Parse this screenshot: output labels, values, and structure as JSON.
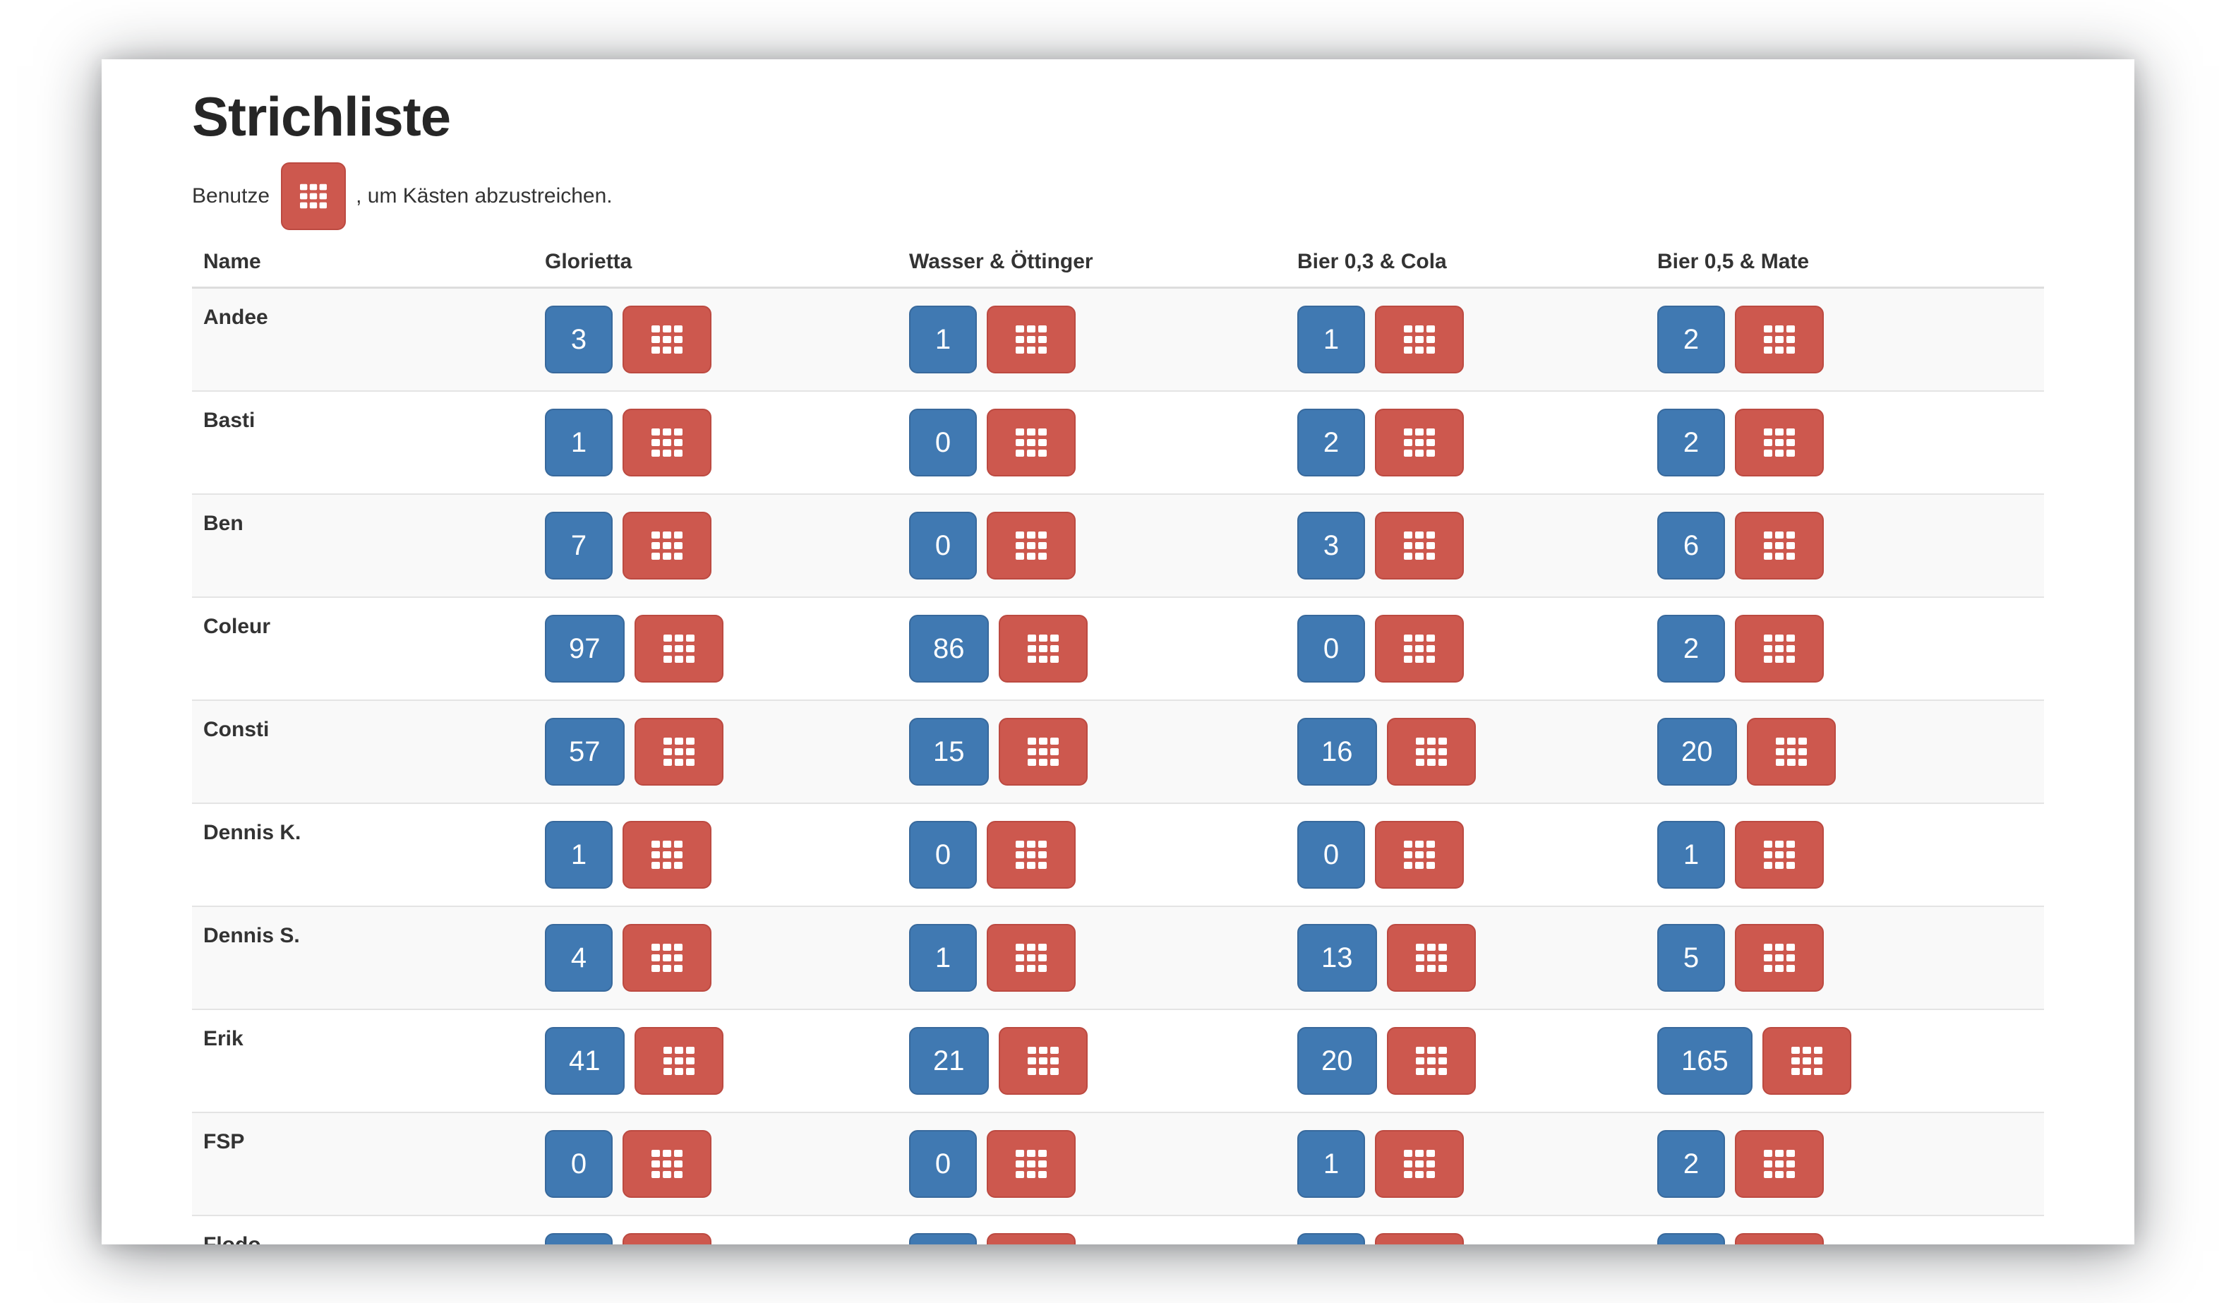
{
  "page": {
    "title": "Strichliste",
    "instruction_prefix": "Benutze",
    "instruction_suffix": ", um Kästen abzustreichen."
  },
  "colors": {
    "count_button": "#4079b2",
    "strike_button": "#cd584e",
    "row_stripe": "#f9f9f9",
    "text": "#333333"
  },
  "icons": {
    "strike_button_icon": "grid-icon"
  },
  "table": {
    "columns": [
      "Name",
      "Glorietta",
      "Wasser & Öttinger",
      "Bier 0,3 & Cola",
      "Bier 0,5 & Mate"
    ],
    "rows": [
      {
        "name": "Andee",
        "counts": [
          "3",
          "1",
          "1",
          "2"
        ]
      },
      {
        "name": "Basti",
        "counts": [
          "1",
          "0",
          "2",
          "2"
        ]
      },
      {
        "name": "Ben",
        "counts": [
          "7",
          "0",
          "3",
          "6"
        ]
      },
      {
        "name": "Coleur",
        "counts": [
          "97",
          "86",
          "0",
          "2"
        ]
      },
      {
        "name": "Consti",
        "counts": [
          "57",
          "15",
          "16",
          "20"
        ]
      },
      {
        "name": "Dennis K.",
        "counts": [
          "1",
          "0",
          "0",
          "1"
        ]
      },
      {
        "name": "Dennis S.",
        "counts": [
          "4",
          "1",
          "13",
          "5"
        ]
      },
      {
        "name": "Erik",
        "counts": [
          "41",
          "21",
          "20",
          "165"
        ]
      },
      {
        "name": "FSP",
        "counts": [
          "0",
          "0",
          "1",
          "2"
        ]
      },
      {
        "name": "Flodo",
        "counts": [
          null,
          null,
          null,
          null
        ]
      }
    ]
  }
}
